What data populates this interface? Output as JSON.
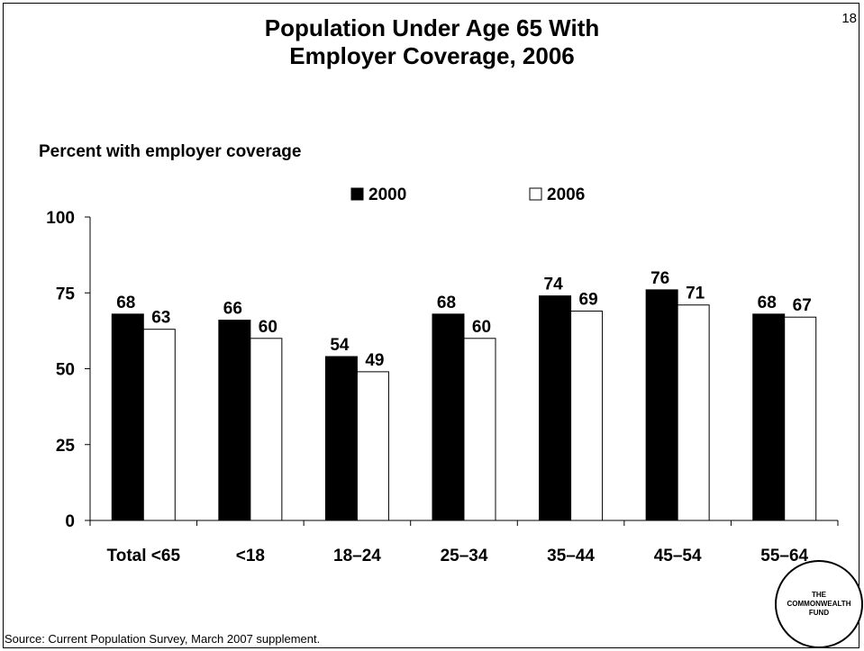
{
  "page_number": "18",
  "title_line1": "Population Under Age 65 With",
  "title_line2": "Employer Coverage, 2006",
  "logo": {
    "line1": "THE",
    "line2": "COMMONWEALTH",
    "line3": "FUND"
  },
  "source": "Source: Current Population Survey, March 2007 supplement.",
  "colors": {
    "series_2000": "#000000",
    "series_2006": "#ffffff"
  },
  "chart_data": {
    "type": "bar",
    "title": "Population Under Age 65 With Employer Coverage, 2006",
    "ylabel": "Percent with employer coverage",
    "xlabel": "",
    "ylim": [
      0,
      100
    ],
    "yticks": [
      "0",
      "25",
      "50",
      "75",
      "100"
    ],
    "categories": [
      "Total <65",
      "<18",
      "18–24",
      "25–34",
      "35–44",
      "45–54",
      "55–64"
    ],
    "series": [
      {
        "name": "2000",
        "values": [
          68,
          66,
          54,
          68,
          74,
          76,
          68
        ]
      },
      {
        "name": "2006",
        "values": [
          63,
          60,
          49,
          60,
          69,
          71,
          67
        ]
      }
    ],
    "legend": {
      "position": "top",
      "entries": [
        "2000",
        "2006"
      ]
    },
    "grid": false
  }
}
